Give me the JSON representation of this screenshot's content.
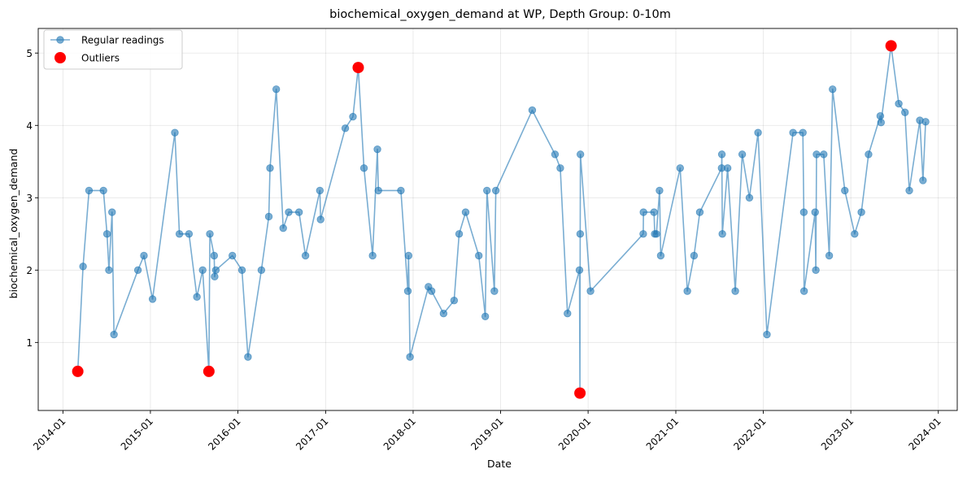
{
  "chart_data": {
    "type": "line",
    "title": "biochemical_oxygen_demand at WP, Depth Group: 0-10m",
    "xlabel": "Date",
    "ylabel": "biochemical_oxygen_demand",
    "xlim": [
      "2013-09-20",
      "2024-03-20"
    ],
    "ylim": [
      0.06,
      5.34
    ],
    "x_ticks": [
      "2014-01",
      "2015-01",
      "2016-01",
      "2017-01",
      "2018-01",
      "2019-01",
      "2020-01",
      "2021-01",
      "2022-01",
      "2023-01",
      "2024-01"
    ],
    "y_ticks": [
      1,
      2,
      3,
      4,
      5
    ],
    "grid": true,
    "legend_position": "top-left",
    "colors": {
      "regular": "#1f77b4",
      "outlier": "#ff0000"
    },
    "series": [
      {
        "name": "Regular readings",
        "style": "line-with-markers",
        "points": [
          [
            "2014-03-04",
            0.6
          ],
          [
            "2014-03-26",
            2.05
          ],
          [
            "2014-04-20",
            3.1
          ],
          [
            "2014-06-19",
            3.1
          ],
          [
            "2014-07-04",
            2.5
          ],
          [
            "2014-07-12",
            2.0
          ],
          [
            "2014-07-25",
            2.8
          ],
          [
            "2014-08-02",
            1.11
          ],
          [
            "2014-11-10",
            2.0
          ],
          [
            "2014-12-05",
            2.2
          ],
          [
            "2015-01-10",
            1.6
          ],
          [
            "2015-04-13",
            3.9
          ],
          [
            "2015-05-02",
            2.5
          ],
          [
            "2015-06-11",
            2.5
          ],
          [
            "2015-07-14",
            1.63
          ],
          [
            "2015-08-07",
            2.0
          ],
          [
            "2015-09-02",
            0.6
          ],
          [
            "2015-09-06",
            2.5
          ],
          [
            "2015-09-24",
            2.2
          ],
          [
            "2015-09-26",
            1.91
          ],
          [
            "2015-10-01",
            2.0
          ],
          [
            "2015-12-09",
            2.2
          ],
          [
            "2016-01-18",
            2.0
          ],
          [
            "2016-02-12",
            0.8
          ],
          [
            "2016-04-08",
            2.0
          ],
          [
            "2016-05-09",
            2.74
          ],
          [
            "2016-05-14",
            3.41
          ],
          [
            "2016-06-09",
            4.5
          ],
          [
            "2016-07-08",
            2.58
          ],
          [
            "2016-07-31",
            2.8
          ],
          [
            "2016-09-12",
            2.8
          ],
          [
            "2016-10-09",
            2.2
          ],
          [
            "2016-12-08",
            3.1
          ],
          [
            "2016-12-11",
            2.7
          ],
          [
            "2017-03-24",
            3.96
          ],
          [
            "2017-04-25",
            4.12
          ],
          [
            "2017-05-17",
            4.8
          ],
          [
            "2017-06-10",
            3.41
          ],
          [
            "2017-07-16",
            2.2
          ],
          [
            "2017-08-05",
            3.67
          ],
          [
            "2017-08-09",
            3.1
          ],
          [
            "2017-11-11",
            3.1
          ],
          [
            "2017-12-10",
            1.71
          ],
          [
            "2017-12-13",
            2.2
          ],
          [
            "2017-12-19",
            0.8
          ],
          [
            "2018-03-06",
            1.77
          ],
          [
            "2018-03-19",
            1.71
          ],
          [
            "2018-05-08",
            1.4
          ],
          [
            "2018-06-21",
            1.58
          ],
          [
            "2018-07-12",
            2.5
          ],
          [
            "2018-08-08",
            2.8
          ],
          [
            "2018-10-02",
            2.2
          ],
          [
            "2018-10-29",
            1.36
          ],
          [
            "2018-11-05",
            3.1
          ],
          [
            "2018-12-06",
            1.71
          ],
          [
            "2018-12-12",
            3.1
          ],
          [
            "2019-05-13",
            4.21
          ],
          [
            "2019-08-16",
            3.6
          ],
          [
            "2019-09-07",
            3.41
          ],
          [
            "2019-10-07",
            1.4
          ],
          [
            "2019-11-26",
            2.0
          ],
          [
            "2019-11-28",
            0.3
          ],
          [
            "2019-11-29",
            2.5
          ],
          [
            "2019-11-30",
            3.6
          ],
          [
            "2020-01-11",
            1.71
          ],
          [
            "2020-08-18",
            2.5
          ],
          [
            "2020-08-19",
            2.8
          ],
          [
            "2020-10-02",
            2.8
          ],
          [
            "2020-10-05",
            2.5
          ],
          [
            "2020-10-12",
            2.5
          ],
          [
            "2020-10-25",
            3.1
          ],
          [
            "2020-10-30",
            2.2
          ],
          [
            "2021-01-19",
            3.41
          ],
          [
            "2021-02-18",
            1.71
          ],
          [
            "2021-03-18",
            2.2
          ],
          [
            "2021-04-11",
            2.8
          ],
          [
            "2021-07-11",
            3.41
          ],
          [
            "2021-07-12",
            3.6
          ],
          [
            "2021-07-14",
            2.5
          ],
          [
            "2021-08-05",
            3.41
          ],
          [
            "2021-09-06",
            1.71
          ],
          [
            "2021-10-05",
            3.6
          ],
          [
            "2021-11-04",
            3.0
          ],
          [
            "2021-12-10",
            3.9
          ],
          [
            "2022-01-16",
            1.11
          ],
          [
            "2022-05-05",
            3.9
          ],
          [
            "2022-06-15",
            3.9
          ],
          [
            "2022-06-19",
            2.8
          ],
          [
            "2022-06-20",
            1.71
          ],
          [
            "2022-08-05",
            2.8
          ],
          [
            "2022-08-08",
            2.0
          ],
          [
            "2022-08-11",
            3.6
          ],
          [
            "2022-09-10",
            3.6
          ],
          [
            "2022-10-03",
            2.2
          ],
          [
            "2022-10-17",
            4.5
          ],
          [
            "2022-12-07",
            3.1
          ],
          [
            "2023-01-17",
            2.5
          ],
          [
            "2023-02-14",
            2.8
          ],
          [
            "2023-03-16",
            3.6
          ],
          [
            "2023-05-04",
            4.13
          ],
          [
            "2023-05-07",
            4.04
          ],
          [
            "2023-06-18",
            5.1
          ],
          [
            "2023-07-20",
            4.3
          ],
          [
            "2023-08-15",
            4.18
          ],
          [
            "2023-09-02",
            3.1
          ],
          [
            "2023-10-16",
            4.07
          ],
          [
            "2023-10-29",
            3.24
          ],
          [
            "2023-11-09",
            4.05
          ]
        ]
      },
      {
        "name": "Outliers",
        "style": "markers",
        "points": [
          [
            "2014-03-04",
            0.6
          ],
          [
            "2015-09-02",
            0.6
          ],
          [
            "2017-05-17",
            4.8
          ],
          [
            "2019-11-28",
            0.3
          ],
          [
            "2023-06-18",
            5.1
          ]
        ]
      }
    ]
  }
}
